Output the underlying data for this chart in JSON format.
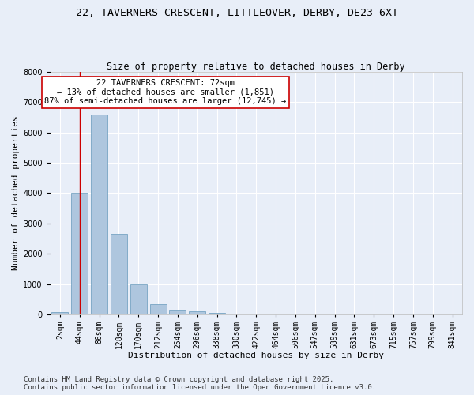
{
  "title1": "22, TAVERNERS CRESCENT, LITTLEOVER, DERBY, DE23 6XT",
  "title2": "Size of property relative to detached houses in Derby",
  "xlabel": "Distribution of detached houses by size in Derby",
  "ylabel": "Number of detached properties",
  "categories": [
    "2sqm",
    "44sqm",
    "86sqm",
    "128sqm",
    "170sqm",
    "212sqm",
    "254sqm",
    "296sqm",
    "338sqm",
    "380sqm",
    "422sqm",
    "464sqm",
    "506sqm",
    "547sqm",
    "589sqm",
    "631sqm",
    "673sqm",
    "715sqm",
    "757sqm",
    "799sqm",
    "841sqm"
  ],
  "values": [
    70,
    4000,
    6600,
    2650,
    980,
    340,
    120,
    90,
    50,
    0,
    0,
    0,
    0,
    0,
    0,
    0,
    0,
    0,
    0,
    0,
    0
  ],
  "bar_color": "#aec6de",
  "bar_edgecolor": "#6699bb",
  "vline_x": 1.0,
  "vline_color": "#cc0000",
  "annotation_title": "22 TAVERNERS CRESCENT: 72sqm",
  "annotation_line1": "← 13% of detached houses are smaller (1,851)",
  "annotation_line2": "87% of semi-detached houses are larger (12,745) →",
  "annotation_box_color": "#ffffff",
  "annotation_box_edgecolor": "#cc0000",
  "ylim": [
    0,
    8000
  ],
  "yticks": [
    0,
    1000,
    2000,
    3000,
    4000,
    5000,
    6000,
    7000,
    8000
  ],
  "background_color": "#e8eef8",
  "grid_color": "#ffffff",
  "footer1": "Contains HM Land Registry data © Crown copyright and database right 2025.",
  "footer2": "Contains public sector information licensed under the Open Government Licence v3.0.",
  "title1_fontsize": 9.5,
  "title2_fontsize": 8.5,
  "xlabel_fontsize": 8,
  "ylabel_fontsize": 8,
  "tick_fontsize": 7,
  "annotation_fontsize": 7.5,
  "footer_fontsize": 6.5
}
